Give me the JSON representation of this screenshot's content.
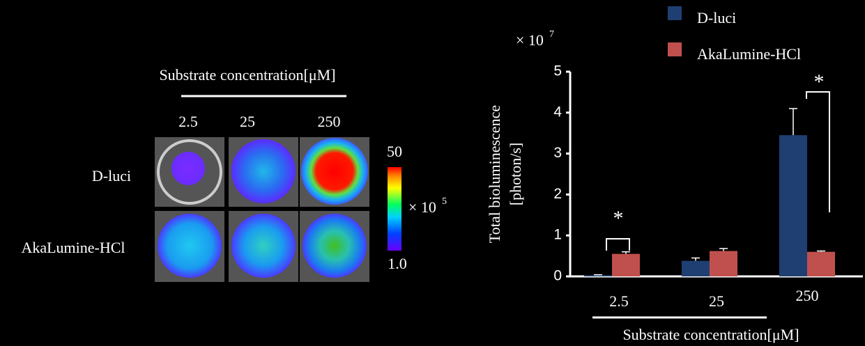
{
  "image_panel": {
    "header": "Substrate concentration[μM]",
    "columns": [
      "2.5",
      "25",
      "250"
    ],
    "rows": [
      "D-luci",
      "AkaLumine-HCl"
    ],
    "colorbar": {
      "max_label": "50",
      "min_label": "1.0",
      "unit_base": "× 10",
      "unit_exponent": "5"
    }
  },
  "chart_data": {
    "type": "bar",
    "ylabel": [
      "Total bioluminescence",
      "[photon/s]"
    ],
    "xlabel": "Substrate concentration[μM]",
    "y_multiplier": {
      "base": "× 10",
      "exponent": "7"
    },
    "categories": [
      "2.5",
      "25",
      "250"
    ],
    "series": [
      {
        "name": "D-luci",
        "color": "#1f3f73",
        "values": [
          0.03,
          0.38,
          3.45
        ],
        "errors": [
          0.01,
          0.07,
          0.65
        ]
      },
      {
        "name": "AkaLumine-HCl",
        "color": "#c0504d",
        "values": [
          0.55,
          0.62,
          0.6
        ],
        "errors": [
          0.05,
          0.06,
          0.02
        ]
      }
    ],
    "ylim": [
      0,
      5
    ],
    "yticks": [
      0,
      1,
      2,
      3,
      4,
      5
    ],
    "annotations": [
      "*",
      "*"
    ]
  }
}
